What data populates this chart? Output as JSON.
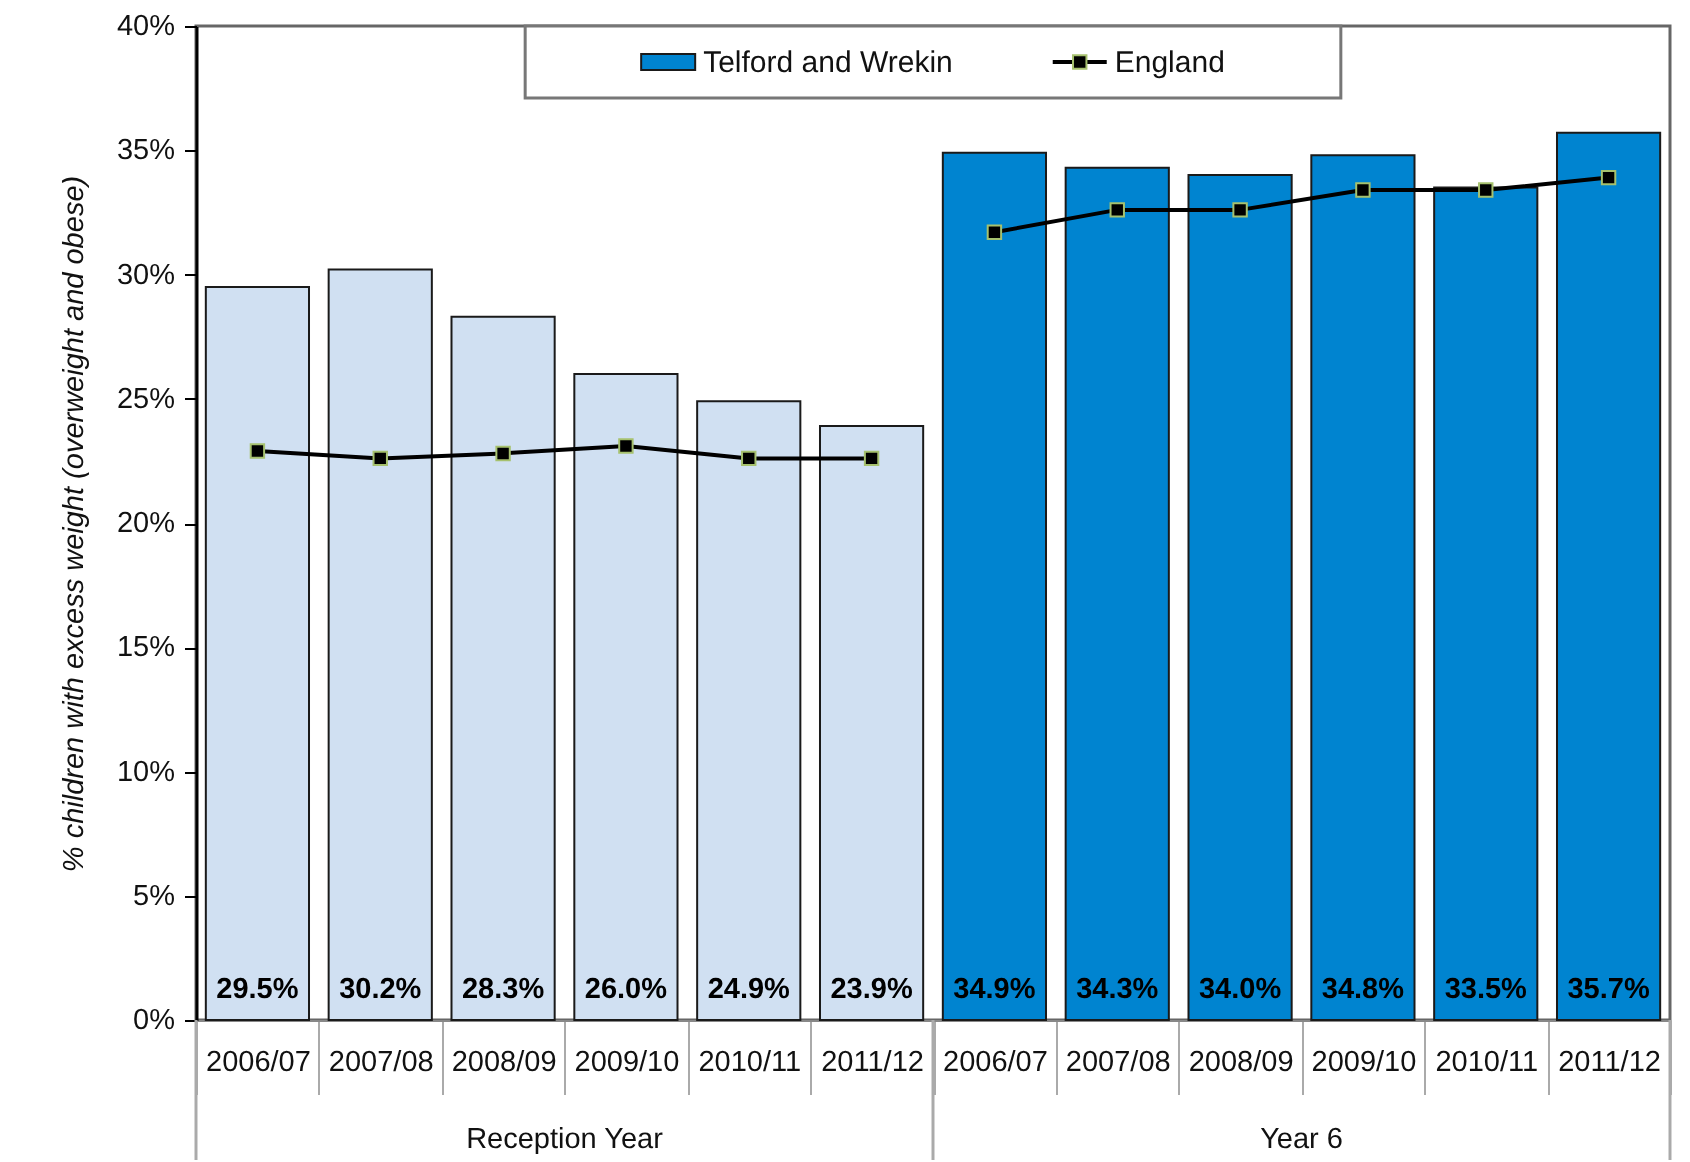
{
  "chart_data": {
    "type": "bar",
    "ylabel": "% children with excess weight (overweight and obese)",
    "categories": [
      "2006/07",
      "2007/08",
      "2008/09",
      "2009/10",
      "2010/11",
      "2011/12",
      "2006/07",
      "2007/08",
      "2008/09",
      "2009/10",
      "2010/11",
      "2011/12"
    ],
    "series": [
      {
        "name": "Telford and Wrekin",
        "color": "#0084d0",
        "colors": [
          "#d0e0f2",
          "#d0e0f2",
          "#d0e0f2",
          "#d0e0f2",
          "#d0e0f2",
          "#d0e0f2",
          "#0084d0",
          "#0084d0",
          "#0084d0",
          "#0084d0",
          "#0084d0",
          "#0084d0"
        ],
        "values": [
          29.5,
          30.2,
          28.3,
          26.0,
          24.9,
          23.9,
          34.9,
          34.3,
          34.0,
          34.8,
          33.5,
          35.7
        ],
        "value_labels": [
          "29.5%",
          "30.2%",
          "28.3%",
          "26.0%",
          "24.9%",
          "23.9%",
          "34.9%",
          "34.3%",
          "34.0%",
          "34.8%",
          "33.5%",
          "35.7%"
        ]
      },
      {
        "name": "England",
        "type": "line",
        "color": "#000000",
        "values": [
          22.9,
          22.6,
          22.8,
          23.1,
          22.6,
          22.6,
          31.7,
          32.6,
          32.6,
          33.4,
          33.4,
          33.9
        ]
      }
    ],
    "ylim": [
      0,
      40
    ],
    "yticks": [
      {
        "value": 0,
        "label": "0%"
      },
      {
        "value": 5,
        "label": "5%"
      },
      {
        "value": 10,
        "label": "10%"
      },
      {
        "value": 15,
        "label": "15%"
      },
      {
        "value": 20,
        "label": "20%"
      },
      {
        "value": 25,
        "label": "25%"
      },
      {
        "value": 30,
        "label": "30%"
      },
      {
        "value": 35,
        "label": "35%"
      },
      {
        "value": 40,
        "label": "40%"
      }
    ],
    "annotations": [
      "Reception Year",
      "Year 6"
    ],
    "marker": "square",
    "legend": "top"
  }
}
